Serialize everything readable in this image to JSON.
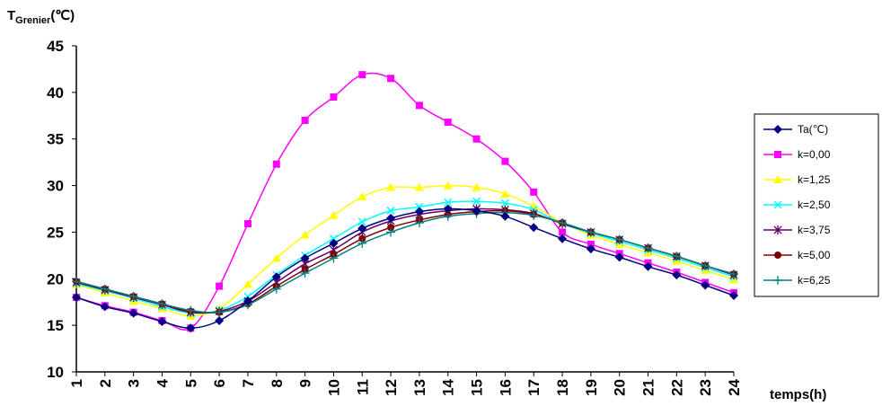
{
  "chart_data": {
    "type": "line",
    "title": "",
    "ylabel": {
      "main": "T",
      "sub": "Grenier",
      "unit": "(℃)"
    },
    "xlabel": "temps(h)",
    "ylim": [
      10,
      45
    ],
    "yticks": [
      10,
      15,
      20,
      25,
      30,
      35,
      40,
      45
    ],
    "categories": [
      "1",
      "2",
      "3",
      "4",
      "5",
      "6",
      "7",
      "8",
      "9",
      "10",
      "11",
      "12",
      "13",
      "14",
      "15",
      "16",
      "17",
      "18",
      "19",
      "20",
      "21",
      "22",
      "23",
      "24"
    ],
    "grid": false,
    "legend_position": "right",
    "series": [
      {
        "name": "Ta(℃)",
        "color": "#000080",
        "marker": "diamond",
        "values": [
          18.0,
          17.0,
          16.3,
          15.4,
          14.7,
          15.5,
          17.6,
          20.2,
          22.2,
          23.8,
          25.4,
          26.5,
          27.2,
          27.5,
          27.3,
          26.7,
          25.5,
          24.3,
          23.2,
          22.3,
          21.3,
          20.4,
          19.3,
          18.2
        ]
      },
      {
        "name": "k=0,00",
        "color": "#FF00FF",
        "marker": "square",
        "values": [
          18.0,
          17.1,
          16.4,
          15.5,
          14.7,
          19.2,
          25.9,
          32.3,
          37.0,
          39.5,
          41.9,
          41.5,
          38.6,
          36.8,
          35.0,
          32.6,
          29.3,
          25.0,
          23.7,
          22.7,
          21.7,
          20.7,
          19.6,
          18.5
        ]
      },
      {
        "name": "k=1,25",
        "color": "#FFFF00",
        "marker": "triangle",
        "values": [
          19.4,
          18.5,
          17.6,
          16.8,
          16.0,
          16.8,
          19.4,
          22.2,
          24.7,
          26.8,
          28.8,
          29.8,
          29.8,
          30.0,
          29.8,
          29.1,
          27.8,
          26.0,
          24.7,
          23.7,
          22.8,
          21.9,
          20.9,
          19.9
        ]
      },
      {
        "name": "k=2,50",
        "color": "#00FFFF",
        "marker": "x",
        "values": [
          19.5,
          18.7,
          17.9,
          17.0,
          16.3,
          16.6,
          18.1,
          20.4,
          22.5,
          24.3,
          26.1,
          27.3,
          27.7,
          28.2,
          28.3,
          28.1,
          27.4,
          25.9,
          24.9,
          24.0,
          23.1,
          22.2,
          21.2,
          20.2
        ]
      },
      {
        "name": "k=3,75",
        "color": "#660066",
        "marker": "star",
        "values": [
          19.6,
          18.8,
          18.0,
          17.2,
          16.4,
          16.5,
          17.6,
          19.6,
          21.6,
          23.1,
          25.0,
          26.2,
          26.9,
          27.3,
          27.5,
          27.4,
          27.0,
          25.9,
          25.0,
          24.2,
          23.3,
          22.4,
          21.4,
          20.4
        ]
      },
      {
        "name": "k=5,00",
        "color": "#800000",
        "marker": "circle",
        "values": [
          19.7,
          18.9,
          18.1,
          17.3,
          16.5,
          16.4,
          17.3,
          19.2,
          21.0,
          22.6,
          24.3,
          25.5,
          26.3,
          26.9,
          27.2,
          27.3,
          26.9,
          26.0,
          25.0,
          24.2,
          23.3,
          22.4,
          21.4,
          20.5
        ]
      },
      {
        "name": "k=6,25",
        "color": "#008080",
        "marker": "plus",
        "values": [
          19.7,
          18.9,
          18.1,
          17.3,
          16.6,
          16.4,
          17.2,
          18.9,
          20.6,
          22.2,
          23.8,
          25.0,
          26.0,
          26.7,
          27.0,
          27.1,
          26.8,
          26.0,
          25.0,
          24.2,
          23.3,
          22.4,
          21.4,
          20.5
        ]
      }
    ]
  }
}
